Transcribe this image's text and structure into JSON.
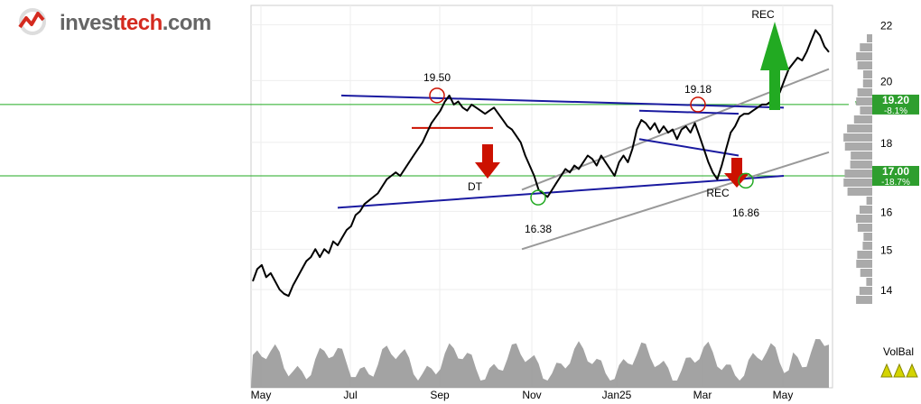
{
  "logo": {
    "part1": "invest",
    "part2": "tech",
    "part3": ".com"
  },
  "colors": {
    "price": "#000000",
    "up": "#ff0000",
    "down_seg": "#22aa22",
    "trend_blue": "#1a1aa0",
    "channel_gray": "#999999",
    "support_green": "#22aa22",
    "arrow_red": "#cc1100",
    "arrow_green": "#22aa22",
    "volume": "#999999",
    "badge_green": "#2e9e2e"
  },
  "chart_data": {
    "type": "line",
    "title": "",
    "x_ticks": [
      "May",
      "Jul",
      "Sep",
      "Nov",
      "Jan25",
      "Mar",
      "May"
    ],
    "y_ticks": [
      14,
      15,
      16,
      17,
      18,
      20,
      22
    ],
    "y_scale": "log",
    "ylim": [
      13.6,
      22.6
    ],
    "support_lines": [
      {
        "value": 19.2,
        "label": "19.20",
        "change": "-8.1%",
        "stars": "***"
      },
      {
        "value": 17.0,
        "label": "17.00",
        "change": "-18.7%",
        "stars": "**"
      }
    ],
    "annotations": [
      {
        "text": "19.50",
        "type": "top"
      },
      {
        "text": "19.18",
        "type": "top"
      },
      {
        "text": "16.38",
        "type": "bottom"
      },
      {
        "text": "16.86",
        "type": "bottom"
      },
      {
        "text": "DT",
        "type": "signal-sell"
      },
      {
        "text": "REC",
        "type": "signal-sell"
      },
      {
        "text": "REC",
        "type": "signal-buy"
      }
    ],
    "volume_indicator": "VolBal",
    "series": [
      {
        "values": [
          14.2,
          14.5,
          14.6,
          14.3,
          14.4,
          14.2,
          14.0,
          13.9,
          13.85,
          14.1,
          14.3,
          14.5,
          14.7,
          14.8,
          15.0,
          14.8,
          15.0,
          14.9,
          15.2,
          15.1,
          15.3,
          15.5,
          15.6,
          15.9,
          16.0,
          16.2,
          16.3,
          16.4,
          16.5,
          16.7,
          16.9,
          17.0,
          17.1,
          17.0,
          17.2,
          17.4,
          17.6,
          17.8,
          18.0,
          18.3,
          18.6,
          18.8,
          19.0,
          19.3,
          19.5,
          19.2,
          19.3,
          19.1,
          19.0,
          19.2,
          19.1,
          19.0,
          18.9,
          19.0,
          19.1,
          18.9,
          18.7,
          18.5,
          18.4,
          18.2,
          18.0,
          17.6,
          17.3,
          17.0,
          16.6,
          16.5,
          16.4,
          16.6,
          16.8,
          17.0,
          17.2,
          17.1,
          17.3,
          17.2,
          17.4,
          17.6,
          17.5,
          17.3,
          17.6,
          17.4,
          17.2,
          17.0,
          17.4,
          17.6,
          17.4,
          17.8,
          18.4,
          18.7,
          18.6,
          18.4,
          18.6,
          18.3,
          18.5,
          18.3,
          18.4,
          18.1,
          18.4,
          18.5,
          18.3,
          18.6,
          18.2,
          17.8,
          17.4,
          17.1,
          16.9,
          17.3,
          17.8,
          18.3,
          18.5,
          18.8,
          18.9,
          18.9,
          19.0,
          19.1,
          19.2,
          19.2,
          19.3,
          19.4,
          19.6,
          20.0,
          20.4,
          20.6,
          20.8,
          20.7,
          21.0,
          21.4,
          21.8,
          21.6,
          21.2,
          21.0
        ]
      }
    ]
  }
}
